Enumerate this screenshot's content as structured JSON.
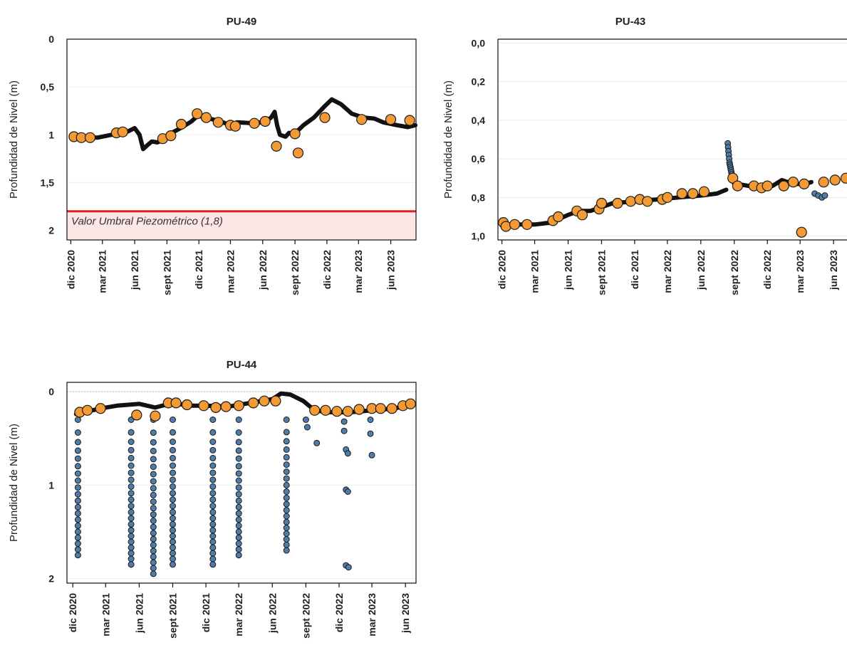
{
  "colors": {
    "manual": "#f39a35",
    "auto": "#4f7ca8",
    "continuous": "#111111",
    "threshold": "#e02020",
    "threshold_fill": "#fde6e6"
  },
  "chart_data": [
    {
      "type": "scatter",
      "title": "PU-49",
      "ylabel": "Profundidad de Nivel (m)",
      "yaxis": "inverted",
      "ylim": [
        0,
        2.1
      ],
      "xlim": [
        "2020-11-20",
        "2023-08-12"
      ],
      "yticks": [
        0,
        0.5,
        1,
        1.5,
        2
      ],
      "ytick_labels": [
        "0",
        "0,5",
        "1",
        "1,5",
        "2"
      ],
      "xticks": [
        "2020-12-01",
        "2021-03-01",
        "2021-06-01",
        "2021-09-01",
        "2021-12-01",
        "2022-03-01",
        "2022-06-01",
        "2022-09-01",
        "2022-12-01",
        "2023-03-01",
        "2023-06-01"
      ],
      "xtick_labels": [
        "dic 2020",
        "mar 2021",
        "jun 2021",
        "sept 2021",
        "dic 2021",
        "mar 2022",
        "jun 2022",
        "sept 2022",
        "dic 2022",
        "mar 2023",
        "jun 2023"
      ],
      "grid": true,
      "threshold": {
        "value": 1.8,
        "label": "Valor Umbral Piezométrico (1,8)"
      },
      "continuous": [
        [
          "2021-01-01",
          1.03
        ],
        [
          "2021-02-15",
          1.03
        ],
        [
          "2021-04-10",
          0.99
        ],
        [
          "2021-05-10",
          0.97
        ],
        [
          "2021-06-01",
          0.93
        ],
        [
          "2021-06-15",
          1.0
        ],
        [
          "2021-06-25",
          1.15
        ],
        [
          "2021-07-10",
          1.1
        ],
        [
          "2021-07-20",
          1.07
        ],
        [
          "2021-08-05",
          1.08
        ],
        [
          "2021-08-20",
          1.05
        ],
        [
          "2021-09-15",
          0.98
        ],
        [
          "2021-10-15",
          0.92
        ],
        [
          "2021-11-10",
          0.86
        ],
        [
          "2021-11-28",
          0.8
        ],
        [
          "2021-12-20",
          0.82
        ],
        [
          "2022-02-01",
          0.86
        ],
        [
          "2022-03-01",
          0.9
        ],
        [
          "2022-03-20",
          0.87
        ],
        [
          "2022-05-10",
          0.88
        ],
        [
          "2022-06-10",
          0.86
        ],
        [
          "2022-06-25",
          0.82
        ],
        [
          "2022-07-05",
          0.76
        ],
        [
          "2022-07-12",
          0.9
        ],
        [
          "2022-07-20",
          1.0
        ],
        [
          "2022-08-05",
          1.02
        ],
        [
          "2022-08-15",
          0.98
        ],
        [
          "2022-08-28",
          1.0
        ],
        [
          "2022-09-25",
          0.9
        ],
        [
          "2022-10-25",
          0.82
        ],
        [
          "2022-11-25",
          0.7
        ],
        [
          "2022-12-15",
          0.63
        ],
        [
          "2023-01-10",
          0.68
        ],
        [
          "2023-02-10",
          0.78
        ],
        [
          "2023-03-15",
          0.82
        ],
        [
          "2023-04-15",
          0.83
        ],
        [
          "2023-05-10",
          0.87
        ],
        [
          "2023-06-20",
          0.9
        ],
        [
          "2023-07-20",
          0.92
        ],
        [
          "2023-08-10",
          0.9
        ]
      ],
      "series": [
        {
          "points": [
            [
              "2020-12-10",
              1.02
            ],
            [
              "2020-12-31",
              1.03
            ],
            [
              "2021-01-25",
              1.03
            ],
            [
              "2021-04-10",
              0.98
            ],
            [
              "2021-04-28",
              0.97
            ],
            [
              "2021-08-20",
              1.04
            ],
            [
              "2021-09-12",
              1.01
            ],
            [
              "2021-10-12",
              0.89
            ],
            [
              "2021-11-26",
              0.78
            ],
            [
              "2021-12-22",
              0.82
            ],
            [
              "2022-01-25",
              0.87
            ],
            [
              "2022-03-01",
              0.9
            ],
            [
              "2022-03-15",
              0.91
            ],
            [
              "2022-05-08",
              0.88
            ],
            [
              "2022-06-08",
              0.86
            ],
            [
              "2022-07-10",
              1.12
            ],
            [
              "2022-09-01",
              0.99
            ],
            [
              "2022-09-10",
              1.19
            ],
            [
              "2022-11-25",
              0.82
            ],
            [
              "2023-03-10",
              0.84
            ],
            [
              "2023-06-01",
              0.84
            ],
            [
              "2023-07-25",
              0.85
            ]
          ]
        }
      ]
    },
    {
      "type": "scatter",
      "title": "PU-43",
      "ylabel": "Profundidad de Nivel (m)",
      "yaxis": "inverted",
      "ylim": [
        -0.02,
        1.02
      ],
      "xlim": [
        "2020-11-20",
        "2023-07-08"
      ],
      "yticks": [
        0,
        0.2,
        0.4,
        0.6,
        0.8,
        1.0
      ],
      "ytick_labels": [
        "0,0",
        "0,2",
        "0,4",
        "0,6",
        "0,8",
        "1,0"
      ],
      "xticks": [
        "2020-12-01",
        "2021-03-01",
        "2021-06-01",
        "2021-09-01",
        "2021-12-01",
        "2022-03-01",
        "2022-06-01",
        "2022-09-01",
        "2022-12-01",
        "2023-03-01",
        "2023-06-01"
      ],
      "xtick_labels": [
        "dic 2020",
        "mar 2021",
        "jun 2021",
        "sept 2021",
        "dic 2021",
        "mar 2022",
        "jun 2022",
        "sept 2022",
        "dic 2022",
        "mar 2023",
        "jun 2023"
      ],
      "grid": true,
      "continuous": [
        [
          "2020-12-01",
          0.94
        ],
        [
          "2021-02-01",
          0.94
        ],
        [
          "2021-03-01",
          0.94
        ],
        [
          "2021-04-15",
          0.93
        ],
        [
          "2021-06-01",
          0.89
        ],
        [
          "2021-07-01",
          0.87
        ],
        [
          "2021-08-01",
          0.87
        ],
        [
          "2021-09-01",
          0.85
        ],
        [
          "2021-10-01",
          0.83
        ],
        [
          "2021-12-01",
          0.82
        ],
        [
          "2022-02-01",
          0.81
        ],
        [
          "2022-04-01",
          0.8
        ],
        [
          "2022-06-01",
          0.79
        ],
        [
          "2022-07-15",
          0.78
        ],
        [
          "2022-08-10",
          0.76
        ]
      ],
      "auto_points": [
        [
          "2022-08-14",
          0.52
        ],
        [
          "2022-08-15",
          0.54
        ],
        [
          "2022-08-16",
          0.56
        ],
        [
          "2022-08-17",
          0.58
        ],
        [
          "2022-08-18",
          0.6
        ],
        [
          "2022-08-19",
          0.62
        ],
        [
          "2022-08-20",
          0.63
        ],
        [
          "2022-08-21",
          0.64
        ],
        [
          "2022-08-22",
          0.65
        ],
        [
          "2022-08-23",
          0.66
        ],
        [
          "2022-08-24",
          0.67
        ],
        [
          "2022-08-25",
          0.68
        ],
        [
          "2022-08-26",
          0.69
        ],
        [
          "2022-08-27",
          0.7
        ],
        [
          "2022-08-29",
          0.71
        ],
        [
          "2022-09-01",
          0.72
        ],
        [
          "2023-04-10",
          0.78
        ],
        [
          "2023-04-20",
          0.79
        ],
        [
          "2023-04-30",
          0.8
        ],
        [
          "2023-05-08",
          0.79
        ]
      ],
      "continuous_2": [
        [
          "2022-09-10",
          0.73
        ],
        [
          "2022-10-10",
          0.74
        ],
        [
          "2022-11-10",
          0.74
        ],
        [
          "2022-12-15",
          0.74
        ],
        [
          "2023-01-10",
          0.71
        ],
        [
          "2023-02-10",
          0.73
        ],
        [
          "2023-03-15",
          0.73
        ],
        [
          "2023-04-01",
          0.72
        ]
      ],
      "series": [
        {
          "points": [
            [
              "2020-12-05",
              0.93
            ],
            [
              "2020-12-12",
              0.95
            ],
            [
              "2021-01-05",
              0.94
            ],
            [
              "2021-02-08",
              0.94
            ],
            [
              "2021-04-20",
              0.92
            ],
            [
              "2021-05-05",
              0.9
            ],
            [
              "2021-06-25",
              0.87
            ],
            [
              "2021-07-10",
              0.89
            ],
            [
              "2021-08-25",
              0.86
            ],
            [
              "2021-09-01",
              0.83
            ],
            [
              "2021-10-15",
              0.83
            ],
            [
              "2021-11-20",
              0.82
            ],
            [
              "2021-12-15",
              0.81
            ],
            [
              "2022-01-05",
              0.82
            ],
            [
              "2022-02-15",
              0.81
            ],
            [
              "2022-03-01",
              0.8
            ],
            [
              "2022-04-10",
              0.78
            ],
            [
              "2022-05-10",
              0.78
            ],
            [
              "2022-06-10",
              0.77
            ],
            [
              "2022-08-28",
              0.7
            ],
            [
              "2022-09-10",
              0.74
            ],
            [
              "2022-10-25",
              0.74
            ],
            [
              "2022-11-15",
              0.75
            ],
            [
              "2022-12-01",
              0.74
            ],
            [
              "2023-01-15",
              0.74
            ],
            [
              "2023-02-10",
              0.72
            ],
            [
              "2023-03-12",
              0.73
            ],
            [
              "2023-03-05",
              0.98
            ],
            [
              "2023-05-05",
              0.72
            ],
            [
              "2023-06-05",
              0.71
            ],
            [
              "2023-07-05",
              0.7
            ]
          ]
        }
      ]
    },
    {
      "type": "scatter",
      "title": "PU-44",
      "ylabel": "Profundidad de Nivel (m)",
      "yaxis": "inverted",
      "ylim": [
        -0.1,
        2.05
      ],
      "xlim": [
        "2020-11-15",
        "2023-06-30"
      ],
      "yticks": [
        0,
        1,
        2
      ],
      "ytick_labels": [
        "0",
        "1",
        "2"
      ],
      "xticks": [
        "2020-12-01",
        "2021-03-01",
        "2021-06-01",
        "2021-09-01",
        "2021-12-01",
        "2022-03-01",
        "2022-06-01",
        "2022-09-01",
        "2022-12-01",
        "2023-03-01",
        "2023-06-01"
      ],
      "xtick_labels": [
        "dic 2020",
        "mar 2021",
        "jun 2021",
        "sept 2021",
        "dic 2021",
        "mar 2022",
        "jun 2022",
        "sept 2022",
        "dic 2022",
        "mar 2023",
        "jun 2023"
      ],
      "grid": true,
      "zero_line": true,
      "continuous": [
        [
          "2020-12-10",
          0.24
        ],
        [
          "2021-01-01",
          0.22
        ],
        [
          "2021-02-15",
          0.18
        ],
        [
          "2021-04-01",
          0.15
        ],
        [
          "2021-06-01",
          0.13
        ],
        [
          "2021-07-15",
          0.17
        ],
        [
          "2021-09-01",
          0.12
        ],
        [
          "2021-10-15",
          0.15
        ],
        [
          "2021-12-01",
          0.15
        ],
        [
          "2022-02-01",
          0.16
        ],
        [
          "2022-04-01",
          0.12
        ],
        [
          "2022-06-01",
          0.08
        ],
        [
          "2022-06-25",
          0.02
        ],
        [
          "2022-07-20",
          0.03
        ],
        [
          "2022-08-25",
          0.1
        ],
        [
          "2022-09-25",
          0.2
        ],
        [
          "2022-11-01",
          0.22
        ],
        [
          "2023-01-01",
          0.22
        ],
        [
          "2023-03-01",
          0.2
        ],
        [
          "2023-05-01",
          0.18
        ],
        [
          "2023-06-05",
          0.15
        ]
      ],
      "auto_drops": [
        {
          "x": "2020-12-15",
          "max": 1.75
        },
        {
          "x": "2021-05-10",
          "max": 1.85
        },
        {
          "x": "2021-07-10",
          "max": 1.95
        },
        {
          "x": "2021-09-01",
          "max": 1.85
        },
        {
          "x": "2021-12-20",
          "max": 1.85
        },
        {
          "x": "2022-03-01",
          "max": 1.75
        },
        {
          "x": "2022-07-10",
          "max": 1.7
        }
      ],
      "auto_points": [
        [
          "2022-09-01",
          0.3
        ],
        [
          "2022-09-05",
          0.38
        ],
        [
          "2022-10-01",
          0.55
        ],
        [
          "2022-12-15",
          0.32
        ],
        [
          "2022-12-15",
          0.42
        ],
        [
          "2022-12-20",
          0.62
        ],
        [
          "2022-12-25",
          0.66
        ],
        [
          "2022-12-20",
          1.05
        ],
        [
          "2022-12-25",
          1.07
        ],
        [
          "2022-12-20",
          1.86
        ],
        [
          "2022-12-27",
          1.88
        ],
        [
          "2023-02-25",
          0.3
        ],
        [
          "2023-02-25",
          0.45
        ],
        [
          "2023-03-01",
          0.68
        ]
      ],
      "series": [
        {
          "points": [
            [
              "2020-12-20",
              0.22
            ],
            [
              "2021-01-10",
              0.2
            ],
            [
              "2021-02-15",
              0.18
            ],
            [
              "2021-05-25",
              0.25
            ],
            [
              "2021-07-15",
              0.26
            ],
            [
              "2021-08-20",
              0.12
            ],
            [
              "2021-09-10",
              0.12
            ],
            [
              "2021-10-10",
              0.14
            ],
            [
              "2021-11-25",
              0.15
            ],
            [
              "2021-12-28",
              0.17
            ],
            [
              "2022-01-25",
              0.16
            ],
            [
              "2022-03-01",
              0.15
            ],
            [
              "2022-04-10",
              0.12
            ],
            [
              "2022-05-10",
              0.1
            ],
            [
              "2022-06-10",
              0.1
            ],
            [
              "2022-09-25",
              0.2
            ],
            [
              "2022-10-25",
              0.2
            ],
            [
              "2022-11-25",
              0.21
            ],
            [
              "2022-12-25",
              0.21
            ],
            [
              "2023-01-25",
              0.19
            ],
            [
              "2023-03-01",
              0.18
            ],
            [
              "2023-03-25",
              0.18
            ],
            [
              "2023-04-25",
              0.18
            ],
            [
              "2023-05-25",
              0.15
            ],
            [
              "2023-06-15",
              0.13
            ]
          ]
        }
      ]
    }
  ]
}
